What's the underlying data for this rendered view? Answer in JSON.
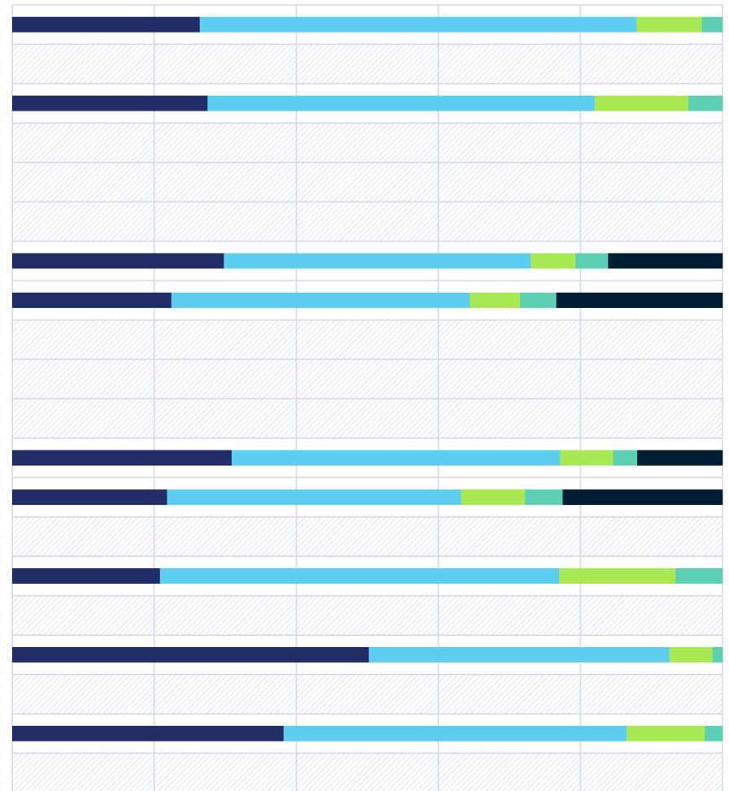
{
  "chart_data": {
    "type": "bar",
    "orientation": "horizontal",
    "stacked": true,
    "normalized": true,
    "grid": true,
    "legend": "none",
    "xlim": [
      0,
      1
    ],
    "row_count": 20,
    "rows": [
      {
        "values": [
          0.264,
          0.615,
          0.092,
          0.029,
          0.0
        ]
      },
      null,
      {
        "values": [
          0.275,
          0.545,
          0.132,
          0.048,
          0.0
        ]
      },
      null,
      null,
      null,
      {
        "values": [
          0.298,
          0.432,
          0.063,
          0.046,
          0.161
        ]
      },
      {
        "values": [
          0.224,
          0.42,
          0.071,
          0.051,
          0.234
        ]
      },
      null,
      null,
      null,
      {
        "values": [
          0.309,
          0.462,
          0.075,
          0.034,
          0.12
        ]
      },
      {
        "values": [
          0.218,
          0.414,
          0.09,
          0.053,
          0.225
        ]
      },
      null,
      {
        "values": [
          0.208,
          0.562,
          0.164,
          0.066,
          0.0
        ]
      },
      null,
      {
        "values": [
          0.502,
          0.423,
          0.061,
          0.014,
          0.0
        ]
      },
      null,
      {
        "values": [
          0.382,
          0.483,
          0.11,
          0.025,
          0.0
        ]
      },
      null
    ],
    "series_colors": [
      "#222c66",
      "#5ecdf2",
      "#a7e853",
      "#5dcfb2",
      "#011d33"
    ]
  },
  "colors": {
    "grid": "#d4d7e8",
    "hatch_bg": "#ffffff",
    "hatch_line": "#dadce6"
  }
}
